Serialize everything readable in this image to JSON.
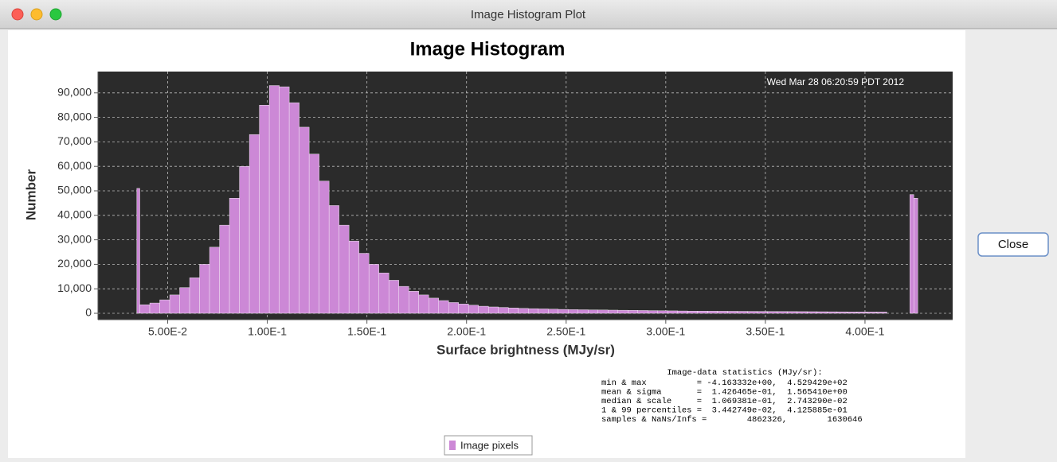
{
  "window": {
    "title": "Image Histogram Plot"
  },
  "button": {
    "label": "Close"
  },
  "chart_data": {
    "type": "histogram",
    "title": "Image Histogram",
    "timestamp": "Wed Mar 28 06:20:59 PDT 2012",
    "x_label": "Surface brightness (MJy/sr)",
    "y_label": "Number",
    "series": [
      {
        "name": "Image pixels",
        "color": "#cc88d6",
        "bins": [
          0.0345,
          0.036,
          0.041,
          0.046,
          0.051,
          0.056,
          0.061,
          0.066,
          0.071,
          0.076,
          0.081,
          0.086,
          0.091,
          0.096,
          0.101,
          0.106,
          0.111,
          0.116,
          0.121,
          0.126,
          0.131,
          0.136,
          0.141,
          0.146,
          0.151,
          0.156,
          0.161,
          0.166,
          0.171,
          0.176,
          0.181,
          0.186,
          0.191,
          0.196,
          0.201,
          0.206,
          0.211,
          0.216,
          0.221,
          0.226,
          0.231,
          0.236,
          0.241,
          0.246,
          0.251,
          0.256,
          0.261,
          0.266,
          0.271,
          0.276,
          0.281,
          0.286,
          0.291,
          0.296,
          0.301,
          0.306,
          0.311,
          0.316,
          0.321,
          0.326,
          0.331,
          0.336,
          0.341,
          0.346,
          0.351,
          0.356,
          0.361,
          0.366,
          0.371,
          0.376,
          0.381,
          0.386,
          0.391,
          0.396,
          0.401,
          0.406,
          0.411,
          0.4225,
          0.4245,
          0.4265
        ],
        "values": [
          51000,
          3500,
          4200,
          5500,
          7500,
          10500,
          14500,
          20000,
          27000,
          36000,
          47000,
          60000,
          73000,
          85000,
          93000,
          92500,
          86000,
          76000,
          65000,
          54000,
          44000,
          36000,
          29500,
          24500,
          20000,
          16500,
          13500,
          11000,
          9000,
          7500,
          6200,
          5200,
          4400,
          3800,
          3300,
          2900,
          2600,
          2400,
          2200,
          2000,
          1900,
          1800,
          1700,
          1600,
          1500,
          1450,
          1400,
          1350,
          1300,
          1250,
          1200,
          1150,
          1100,
          1050,
          1000,
          950,
          900,
          880,
          860,
          840,
          820,
          800,
          780,
          760,
          740,
          720,
          700,
          680,
          660,
          640,
          620,
          600,
          580,
          560,
          540,
          520,
          0,
          48500,
          47000
        ]
      }
    ],
    "xlim": [
      0.015,
      0.444
    ],
    "ylim": [
      -2600,
      98700
    ],
    "xticks": [
      {
        "value": 0.05,
        "label": "5.00E-2"
      },
      {
        "value": 0.1,
        "label": "1.00E-1"
      },
      {
        "value": 0.15,
        "label": "1.50E-1"
      },
      {
        "value": 0.2,
        "label": "2.00E-1"
      },
      {
        "value": 0.25,
        "label": "2.50E-1"
      },
      {
        "value": 0.3,
        "label": "3.00E-1"
      },
      {
        "value": 0.35,
        "label": "3.50E-1"
      },
      {
        "value": 0.4,
        "label": "4.00E-1"
      }
    ],
    "yticks": [
      0,
      {
        "value": 10000,
        "label": "10,000"
      },
      {
        "value": 20000,
        "label": "20,000"
      },
      {
        "value": 30000,
        "label": "30,000"
      },
      {
        "value": 40000,
        "label": "40,000"
      },
      {
        "value": 50000,
        "label": "50,000"
      },
      {
        "value": 60000,
        "label": "60,000"
      },
      {
        "value": 70000,
        "label": "70,000"
      },
      {
        "value": 80000,
        "label": "80,000"
      },
      {
        "value": 90000,
        "label": "90,000"
      }
    ],
    "grid": true,
    "legend": "bottom",
    "stats": {
      "title": "Image-data statistics (MJy/sr):",
      "lines": [
        "min & max          = -4.163332e+00,  4.529429e+02",
        "mean & sigma       =  1.426465e-01,  1.565410e+00",
        "median & scale     =  1.069381e-01,  2.743290e-02",
        "1 & 99 percentiles =  3.442749e-02,  4.125885e-01",
        "samples & NaNs/Infs =        4862326,        1630646"
      ]
    }
  }
}
